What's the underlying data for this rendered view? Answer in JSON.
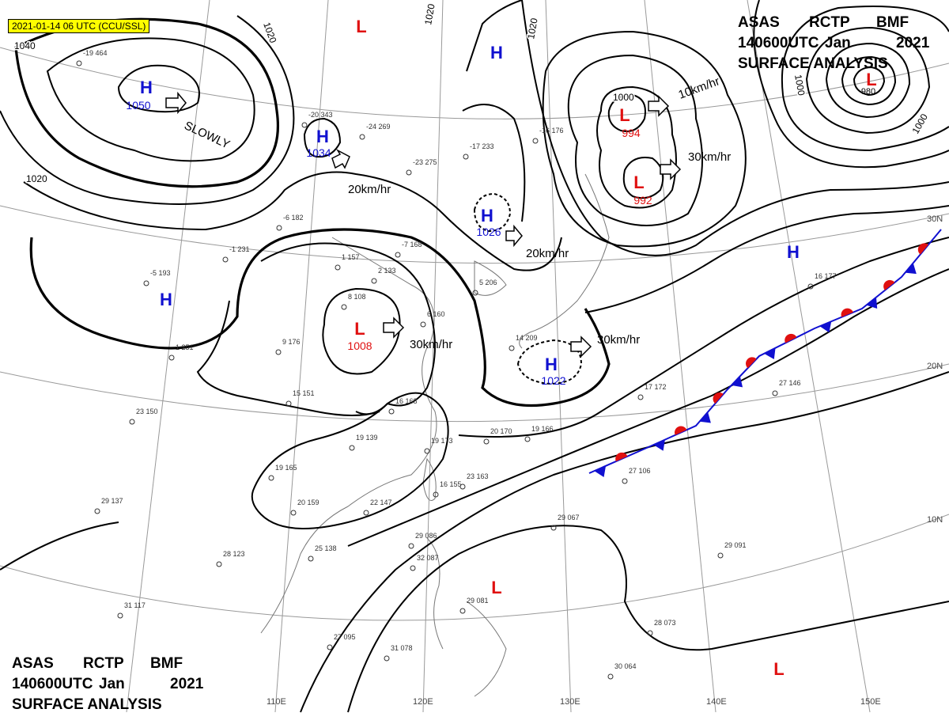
{
  "timestamp_badge": "2021-01-14 06 UTC (CCU/SSL)",
  "header": {
    "line1": [
      "ASAS",
      "RCTP",
      "BMF"
    ],
    "line2": [
      "140600UTC",
      "Jan",
      "2021"
    ],
    "line3": "SURFACE ANALYSIS"
  },
  "footer": {
    "line1": [
      "ASAS",
      "RCTP",
      "BMF"
    ],
    "line2": [
      "140600UTC",
      "Jan",
      "2021"
    ],
    "line3": "SURFACE ANALYSIS"
  },
  "pressure_centers": [
    {
      "type": "H",
      "value": 1050
    },
    {
      "type": "H",
      "value": 1034
    },
    {
      "type": "H",
      "value": 1026
    },
    {
      "type": "H",
      "value": 1022
    },
    {
      "type": "H"
    },
    {
      "type": "H"
    },
    {
      "type": "H"
    },
    {
      "type": "L",
      "value": 1008
    },
    {
      "type": "L",
      "value": 994
    },
    {
      "type": "L",
      "value": 992
    },
    {
      "type": "L",
      "value": 980
    },
    {
      "type": "L"
    },
    {
      "type": "L"
    },
    {
      "type": "L"
    }
  ],
  "motions": [
    "SLOWLY",
    "20km/hr",
    "20km/hr",
    "30km/hr",
    "30km/hr",
    "10km/hr",
    "30km/hr"
  ],
  "isobar_labels": [
    1040,
    1020,
    1020,
    1020,
    1020,
    1000,
    1000,
    1000
  ],
  "latitude_labels": [
    "30N",
    "20N",
    "10N"
  ],
  "longitude_labels": [
    "110E",
    "120E",
    "130E",
    "140E",
    "150E"
  ],
  "stations": [
    "-19 464",
    "-20 343",
    "-24 269",
    "-23 275",
    "-17 233",
    "-16 176",
    "-6 182",
    "-1 231",
    "-5 193",
    "1 251",
    "-7 168",
    "1 157",
    "9 176",
    "8 108",
    "2 133",
    "6 160",
    "5 206",
    "14 209",
    "15 151",
    "16 168",
    "19 139",
    "19 173",
    "19 165",
    "20 159",
    "22 147",
    "25 138",
    "28 123",
    "23 150",
    "29 137",
    "31 117",
    "20 170",
    "19 166",
    "23 163",
    "16 155",
    "17 172",
    "27 146",
    "27 106",
    "16 177",
    "29 091",
    "29 067",
    "29 086",
    "32 087",
    "27 095",
    "31 078",
    "30 064",
    "28 073",
    "29 081"
  ]
}
